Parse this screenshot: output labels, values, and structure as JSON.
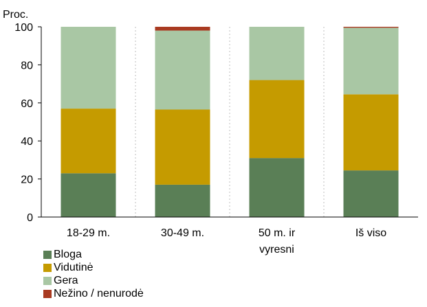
{
  "chart_data": {
    "type": "bar",
    "stacked": true,
    "ylabel": "Proc.",
    "ylim": [
      0,
      100
    ],
    "yticks": [
      0,
      20,
      40,
      60,
      80,
      100
    ],
    "grid": "vertical dashed",
    "legend_position": "bottom-left",
    "categories": [
      [
        "18-29 m."
      ],
      [
        "30-49 m."
      ],
      [
        "50 m. ir",
        "vyresni"
      ],
      [
        "Iš viso"
      ]
    ],
    "series": [
      {
        "name": "Bloga",
        "color": "#5a7f56",
        "values": [
          23,
          17,
          31,
          24.5
        ]
      },
      {
        "name": "Vidutinė",
        "color": "#c59b00",
        "values": [
          34,
          39.5,
          41,
          40
        ]
      },
      {
        "name": "Gera",
        "color": "#a9c7a4",
        "values": [
          43,
          41.5,
          28,
          35
        ]
      },
      {
        "name": "Nežino / nenurodė",
        "color": "#a93a21",
        "values": [
          0,
          2,
          0,
          0.5
        ]
      }
    ]
  }
}
